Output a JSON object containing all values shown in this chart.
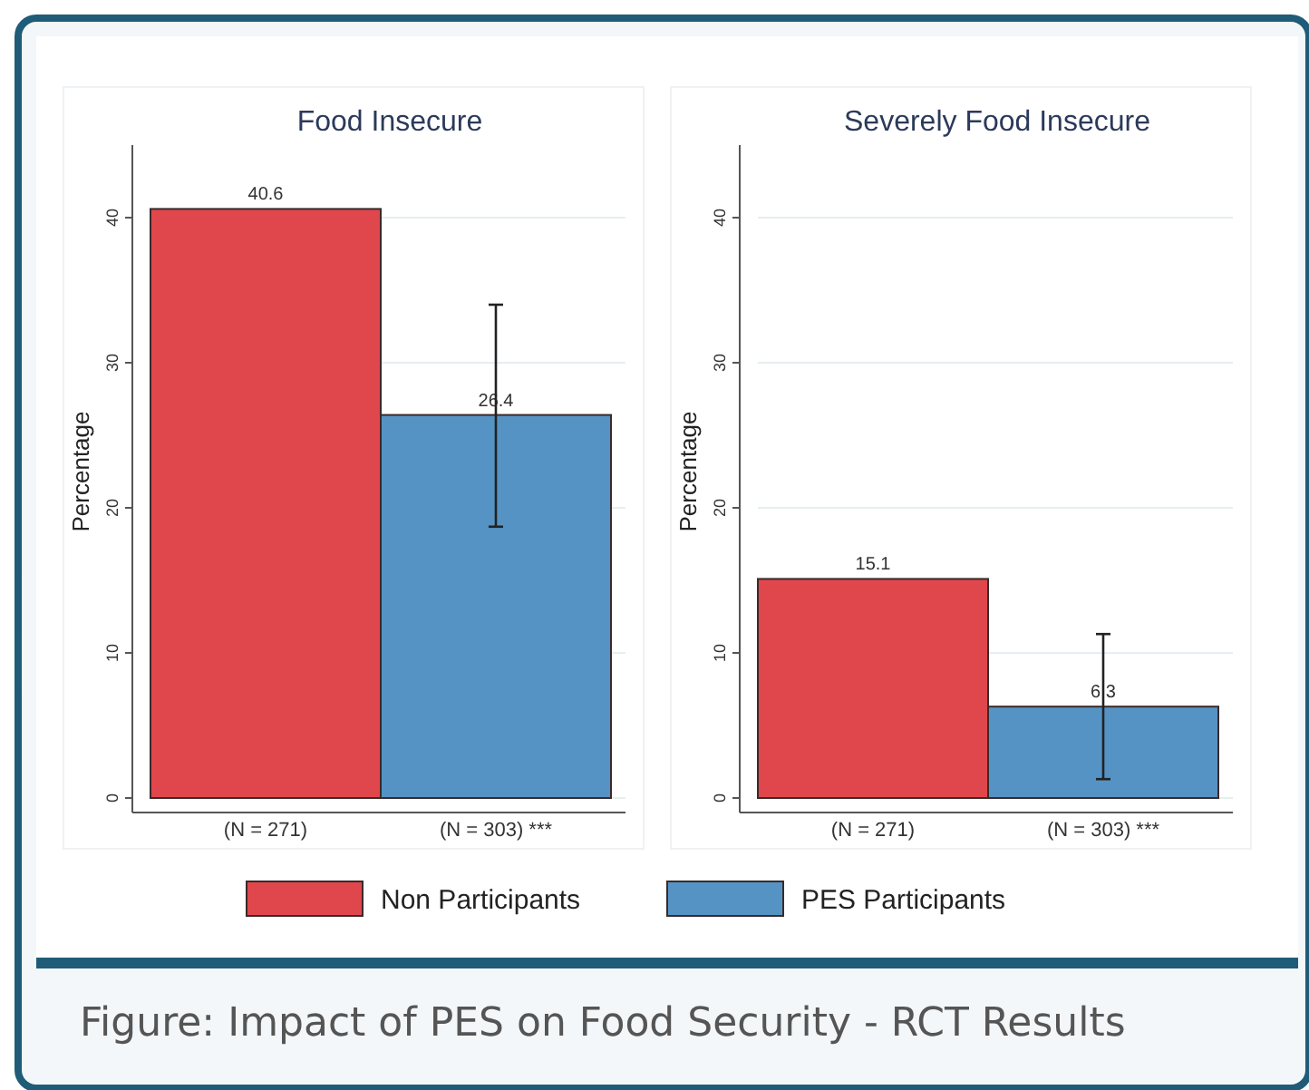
{
  "chart_data": [
    {
      "type": "bar",
      "title": "Food Insecure",
      "ylabel": "Percentage",
      "categories": [
        "(N = 271)",
        "(N = 303) ***"
      ],
      "ylim": [
        0,
        45
      ],
      "yticks": [
        0,
        10,
        20,
        30,
        40
      ],
      "grid": "y",
      "data_labels": true,
      "legend": "bottom",
      "series": [
        {
          "name": "Non Participants",
          "color": "#e0474c",
          "values": [
            40.6,
            null
          ]
        },
        {
          "name": "PES Participants",
          "color": "#5593c4",
          "values": [
            null,
            26.4
          ],
          "errors": [
            null,
            [
              18.7,
              34.0
            ]
          ]
        }
      ],
      "annotations": [
        "Figure: Impact of PES on Food Security - RCT Results"
      ]
    },
    {
      "type": "bar",
      "title": "Severely Food Insecure",
      "ylabel": "Percentage",
      "categories": [
        "(N = 271)",
        "(N = 303) ***"
      ],
      "ylim": [
        0,
        45
      ],
      "yticks": [
        0,
        10,
        20,
        30,
        40
      ],
      "grid": "y",
      "data_labels": true,
      "series": [
        {
          "name": "Non Participants",
          "color": "#e0474c",
          "values": [
            15.1,
            null
          ]
        },
        {
          "name": "PES Participants",
          "color": "#5593c4",
          "values": [
            null,
            6.3
          ],
          "errors": [
            null,
            [
              1.3,
              11.3
            ]
          ]
        }
      ]
    }
  ]
}
